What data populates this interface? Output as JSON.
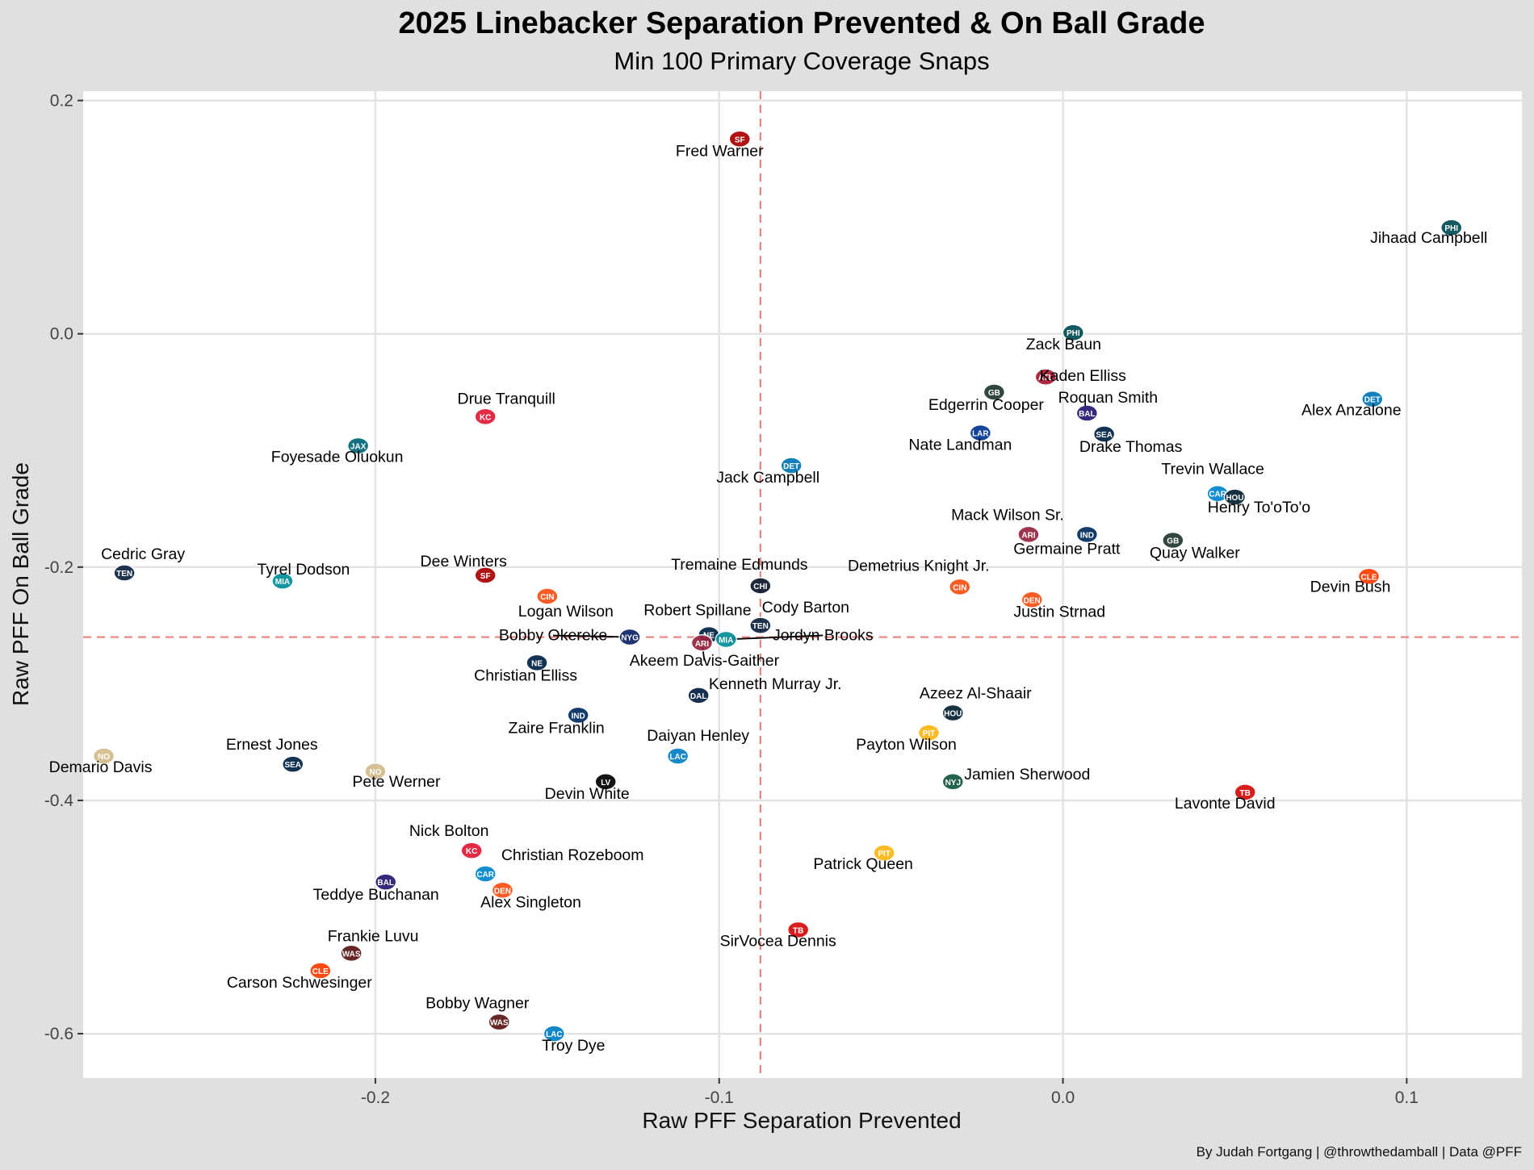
{
  "chart_data": {
    "type": "scatter",
    "title": "2025 Linebacker Separation Prevented & On Ball Grade",
    "subtitle": "Min 100 Primary Coverage Snaps",
    "xlabel": "Raw PFF Separation Prevented",
    "ylabel": "Raw PFF On Ball Grade",
    "caption": "By Judah Fortgang | @throwthedamball | Data @PFF",
    "xlim": [
      -0.285,
      0.1335
    ],
    "ylim": [
      -0.638,
      0.208
    ],
    "x_ticks": [
      -0.2,
      -0.1,
      0.0,
      0.1
    ],
    "x_tick_labels": [
      "-0.2",
      "-0.1",
      "0.0",
      "0.1"
    ],
    "y_ticks": [
      0.2,
      0.0,
      -0.2,
      -0.4,
      -0.6
    ],
    "y_tick_labels": [
      "0.2",
      "0.0",
      "-0.2",
      "-0.4",
      "-0.6"
    ],
    "grid": true,
    "reference_lines": {
      "x_mean": -0.088,
      "y_mean": -0.26,
      "color": "#e8837e"
    },
    "points": [
      {
        "name": "Fred Warner",
        "team": "SF",
        "x": -0.094,
        "y": 0.167,
        "color": "#aa0000"
      },
      {
        "name": "Jihaad Campbell",
        "team": "PHI",
        "x": 0.113,
        "y": 0.091,
        "color": "#004c54"
      },
      {
        "name": "Zack Baun",
        "team": "PHI",
        "x": 0.003,
        "y": 0.001,
        "color": "#004c54"
      },
      {
        "name": "Kaden Elliss",
        "team": "ATL",
        "x": -0.005,
        "y": -0.037,
        "color": "#a71930"
      },
      {
        "name": "Edgerrin Cooper",
        "team": "GB",
        "x": -0.02,
        "y": -0.05,
        "color": "#203731"
      },
      {
        "name": "Roquan Smith",
        "team": "BAL",
        "x": 0.007,
        "y": -0.068,
        "color": "#241773"
      },
      {
        "name": "Alex Anzalone",
        "team": "DET",
        "x": 0.09,
        "y": -0.056,
        "color": "#0076b6"
      },
      {
        "name": "Nate Landman",
        "team": "LAR",
        "x": -0.024,
        "y": -0.085,
        "color": "#003594"
      },
      {
        "name": "Drake Thomas",
        "team": "SEA",
        "x": 0.012,
        "y": -0.086,
        "color": "#002244"
      },
      {
        "name": "Drue Tranquill",
        "team": "KC",
        "x": -0.168,
        "y": -0.071,
        "color": "#e31837"
      },
      {
        "name": "Foyesade Oluokun",
        "team": "JAX",
        "x": -0.205,
        "y": -0.096,
        "color": "#006778"
      },
      {
        "name": "Jack Campbell",
        "team": "DET",
        "x": -0.079,
        "y": -0.113,
        "color": "#0076b6"
      },
      {
        "name": "Trevin Wallace",
        "team": "CAR",
        "x": 0.045,
        "y": -0.137,
        "color": "#0085ca"
      },
      {
        "name": "Henry To'oTo'o",
        "team": "HOU",
        "x": 0.05,
        "y": -0.14,
        "color": "#03202f"
      },
      {
        "name": "Mack Wilson Sr.",
        "team": "ARI",
        "x": -0.01,
        "y": -0.172,
        "color": "#97233f"
      },
      {
        "name": "Germaine Pratt",
        "team": "IND",
        "x": 0.007,
        "y": -0.172,
        "color": "#002c5f"
      },
      {
        "name": "Quay Walker",
        "team": "GB",
        "x": 0.032,
        "y": -0.177,
        "color": "#203731"
      },
      {
        "name": "Devin Bush",
        "team": "CLE",
        "x": 0.089,
        "y": -0.208,
        "color": "#ff3c00"
      },
      {
        "name": "Cedric Gray",
        "team": "TEN",
        "x": -0.273,
        "y": -0.205,
        "color": "#0c2340"
      },
      {
        "name": "Tyrel Dodson",
        "team": "MIA",
        "x": -0.227,
        "y": -0.212,
        "color": "#008e97"
      },
      {
        "name": "Dee Winters",
        "team": "SF",
        "x": -0.168,
        "y": -0.207,
        "color": "#aa0000"
      },
      {
        "name": "Tremaine Edmunds",
        "team": "CHI",
        "x": -0.088,
        "y": -0.216,
        "color": "#0b162a"
      },
      {
        "name": "Demetrius Knight Jr.",
        "team": "CIN",
        "x": -0.03,
        "y": -0.217,
        "color": "#fb4f14"
      },
      {
        "name": "Logan Wilson",
        "team": "CIN",
        "x": -0.15,
        "y": -0.225,
        "color": "#fb4f14"
      },
      {
        "name": "Justin Strnad",
        "team": "DEN",
        "x": -0.009,
        "y": -0.228,
        "color": "#fb4f14"
      },
      {
        "name": "Cody Barton",
        "team": "TEN",
        "x": -0.088,
        "y": -0.25,
        "color": "#0c2340"
      },
      {
        "name": "Robert Spillane",
        "team": "NE",
        "x": -0.103,
        "y": -0.258,
        "color": "#002244"
      },
      {
        "name": "Bobby Okereke",
        "team": "NYG",
        "x": -0.126,
        "y": -0.26,
        "color": "#0b2265"
      },
      {
        "name": "Jordyn Brooks",
        "team": "MIA",
        "x": -0.098,
        "y": -0.262,
        "color": "#008e97"
      },
      {
        "name": "Akeem Davis-Gaither",
        "team": "ARI",
        "x": -0.105,
        "y": -0.265,
        "color": "#97233f"
      },
      {
        "name": "Christian Elliss",
        "team": "NE",
        "x": -0.153,
        "y": -0.282,
        "color": "#002244"
      },
      {
        "name": "Kenneth Murray Jr.",
        "team": "DAL",
        "x": -0.106,
        "y": -0.31,
        "color": "#041e42"
      },
      {
        "name": "Zaire Franklin",
        "team": "IND",
        "x": -0.141,
        "y": -0.327,
        "color": "#002c5f"
      },
      {
        "name": "Azeez Al-Shaair",
        "team": "HOU",
        "x": -0.032,
        "y": -0.325,
        "color": "#03202f"
      },
      {
        "name": "Payton Wilson",
        "team": "PIT",
        "x": -0.039,
        "y": -0.342,
        "color": "#ffb612"
      },
      {
        "name": "Daiyan Henley",
        "team": "LAC",
        "x": -0.112,
        "y": -0.362,
        "color": "#0080c6"
      },
      {
        "name": "Demario Davis",
        "team": "NO",
        "x": -0.279,
        "y": -0.362,
        "color": "#d3bc8d"
      },
      {
        "name": "Ernest Jones",
        "team": "SEA",
        "x": -0.224,
        "y": -0.369,
        "color": "#002244"
      },
      {
        "name": "Pete Werner",
        "team": "NO",
        "x": -0.2,
        "y": -0.375,
        "color": "#d3bc8d"
      },
      {
        "name": "Devin White",
        "team": "LV",
        "x": -0.133,
        "y": -0.384,
        "color": "#000000"
      },
      {
        "name": "Jamien Sherwood",
        "team": "NYJ",
        "x": -0.032,
        "y": -0.384,
        "color": "#125740"
      },
      {
        "name": "Lavonte David",
        "team": "TB",
        "x": 0.053,
        "y": -0.393,
        "color": "#d50a0a"
      },
      {
        "name": "Nick Bolton",
        "team": "KC",
        "x": -0.172,
        "y": -0.443,
        "color": "#e31837"
      },
      {
        "name": "Patrick Queen",
        "team": "PIT",
        "x": -0.052,
        "y": -0.445,
        "color": "#ffb612"
      },
      {
        "name": "Christian Rozeboom",
        "team": "CAR",
        "x": -0.168,
        "y": -0.463,
        "color": "#0085ca"
      },
      {
        "name": "Teddye Buchanan",
        "team": "BAL",
        "x": -0.197,
        "y": -0.47,
        "color": "#241773"
      },
      {
        "name": "Alex Singleton",
        "team": "DEN",
        "x": -0.163,
        "y": -0.477,
        "color": "#fb4f14"
      },
      {
        "name": "SirVocea Dennis",
        "team": "TB",
        "x": -0.077,
        "y": -0.511,
        "color": "#d50a0a"
      },
      {
        "name": "Frankie Luvu",
        "team": "WAS",
        "x": -0.207,
        "y": -0.531,
        "color": "#5a1414"
      },
      {
        "name": "Carson Schwesinger",
        "team": "CLE",
        "x": -0.216,
        "y": -0.546,
        "color": "#ff3c00"
      },
      {
        "name": "Bobby Wagner",
        "team": "WAS",
        "x": -0.164,
        "y": -0.59,
        "color": "#5a1414"
      },
      {
        "name": "Troy Dye",
        "team": "LAC",
        "x": -0.148,
        "y": -0.6,
        "color": "#0080c6"
      }
    ]
  }
}
